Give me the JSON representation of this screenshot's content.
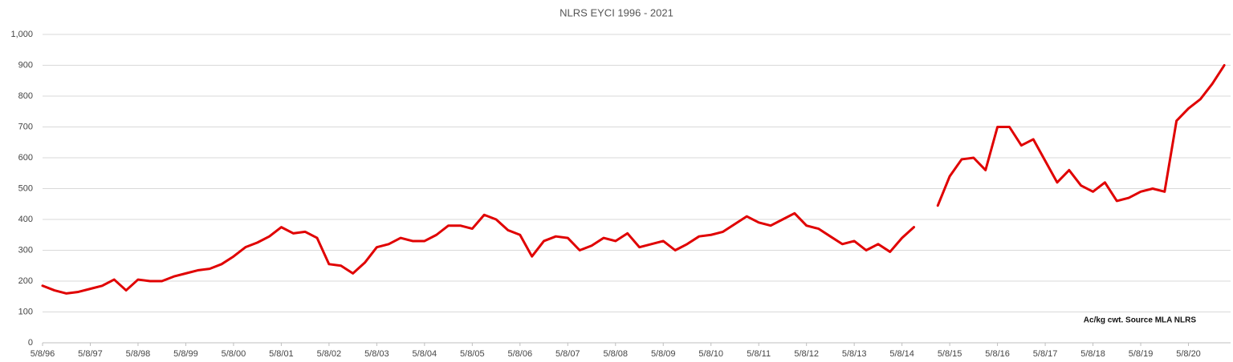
{
  "chart_data": {
    "type": "line",
    "title": "NLRS EYCI 1996 - 2021",
    "annotation": "Ac/kg cwt. Source MLA NLRS",
    "categories": [
      "5/8/96",
      null,
      null,
      null,
      "5/8/97",
      null,
      null,
      null,
      "5/8/98",
      null,
      null,
      null,
      "5/8/99",
      null,
      null,
      null,
      "5/8/00",
      null,
      null,
      null,
      "5/8/01",
      null,
      null,
      null,
      "5/8/02",
      null,
      null,
      null,
      "5/8/03",
      null,
      null,
      null,
      "5/8/04",
      null,
      null,
      null,
      "5/8/05",
      null,
      null,
      null,
      "5/8/06",
      null,
      null,
      null,
      "5/8/07",
      null,
      null,
      null,
      "5/8/08",
      null,
      null,
      null,
      "5/8/09",
      null,
      null,
      null,
      "5/8/10",
      null,
      null,
      null,
      "5/8/11",
      null,
      null,
      null,
      "5/8/12",
      null,
      null,
      null,
      "5/8/13",
      null,
      null,
      null,
      "5/8/14",
      null,
      null,
      null,
      "5/8/15",
      null,
      null,
      null,
      "5/8/16",
      null,
      null,
      null,
      "5/8/17",
      null,
      null,
      null,
      "5/8/18",
      null,
      null,
      null,
      "5/8/19",
      null,
      null,
      null,
      "5/8/20",
      null,
      null,
      null
    ],
    "values": [
      185,
      170,
      160,
      165,
      175,
      185,
      205,
      170,
      205,
      200,
      200,
      215,
      225,
      235,
      240,
      255,
      280,
      310,
      325,
      345,
      375,
      355,
      360,
      340,
      255,
      250,
      225,
      260,
      310,
      320,
      340,
      330,
      330,
      350,
      380,
      380,
      370,
      415,
      400,
      365,
      350,
      280,
      330,
      345,
      340,
      300,
      315,
      340,
      330,
      355,
      310,
      320,
      330,
      300,
      320,
      345,
      350,
      360,
      385,
      410,
      390,
      380,
      400,
      420,
      380,
      370,
      345,
      320,
      330,
      300,
      320,
      295,
      340,
      375,
      null,
      445,
      540,
      595,
      600,
      560,
      700,
      700,
      640,
      660,
      590,
      520,
      560,
      510,
      490,
      520,
      460,
      470,
      490,
      500,
      490,
      720,
      760,
      790,
      840,
      900
    ],
    "color": "#e00000",
    "ylim": [
      0,
      1000
    ],
    "yticks": [
      0,
      100,
      200,
      300,
      400,
      500,
      600,
      700,
      800,
      900,
      {
        "value": 1000,
        "label": "1,000"
      }
    ],
    "grid": true
  }
}
